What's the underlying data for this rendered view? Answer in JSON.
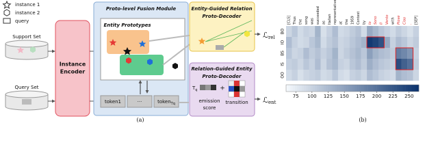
{
  "figure_a": {
    "legend": [
      "instance 1",
      "instance 2",
      "query"
    ],
    "support_set": "Support Set",
    "query_set": "Query Set",
    "instance_encoder": [
      "Instance",
      "Encoder"
    ],
    "fusion_module": "Proto-level Fusion Module",
    "entity_prototypes": "Entity Prototypes",
    "tokens": [
      {
        "text": "token1"
      },
      {
        "text": "···"
      },
      {
        "text": "token",
        "sub": "Tq"
      }
    ],
    "relation_decoder": [
      "Entity-Guided Relation",
      "Proto-Decoder"
    ],
    "entity_decoder": [
      "Relation-Guided Entity",
      "Proto-Decoder"
    ],
    "tq_label": {
      "text": "T",
      "sub": "q"
    },
    "plus": "+",
    "emission": [
      "emission",
      "score"
    ],
    "transition": "transition",
    "loss_rel": {
      "text": "ℒ",
      "sub": "rel"
    },
    "loss_ent": {
      "text": "ℒ",
      "sub": "ent"
    },
    "caption": "(a)"
  },
  "chart_data": {
    "type": "heatmap",
    "caption": "(b)",
    "columns": [
      "[CLS]",
      "Thus",
      "the",
      "song",
      "was",
      "succeeded",
      "as",
      "Italian",
      "representative",
      "at",
      "the",
      "1959",
      "Contest",
      "by",
      "Io",
      "Sono",
      "Il",
      "Vento",
      "with",
      "Piove",
      "Ciao",
      ".",
      "[SEP]"
    ],
    "rows": [
      "BO",
      "IO",
      "BS",
      "IS",
      "OO"
    ],
    "values": [
      [
        95,
        110,
        90,
        100,
        95,
        130,
        85,
        100,
        120,
        90,
        95,
        105,
        115,
        90,
        140,
        125,
        110,
        100,
        90,
        105,
        95,
        85,
        100
      ],
      [
        120,
        100,
        90,
        95,
        110,
        125,
        90,
        105,
        115,
        95,
        100,
        110,
        120,
        130,
        255,
        245,
        230,
        140,
        100,
        120,
        110,
        95,
        105
      ],
      [
        110,
        95,
        100,
        120,
        105,
        115,
        100,
        110,
        130,
        95,
        105,
        115,
        125,
        110,
        150,
        130,
        120,
        115,
        105,
        185,
        175,
        160,
        100
      ],
      [
        100,
        105,
        95,
        110,
        100,
        120,
        95,
        115,
        125,
        100,
        95,
        110,
        120,
        105,
        135,
        120,
        110,
        105,
        100,
        235,
        215,
        200,
        105
      ],
      [
        90,
        100,
        85,
        95,
        100,
        105,
        90,
        95,
        110,
        90,
        85,
        100,
        105,
        95,
        120,
        110,
        100,
        95,
        90,
        130,
        120,
        115,
        95
      ]
    ],
    "clim": [
      60,
      265
    ],
    "cticks": [
      75,
      100,
      125,
      150,
      175,
      200,
      225,
      250
    ],
    "colormap": [
      "#f4f8fc",
      "#08306b"
    ]
  }
}
